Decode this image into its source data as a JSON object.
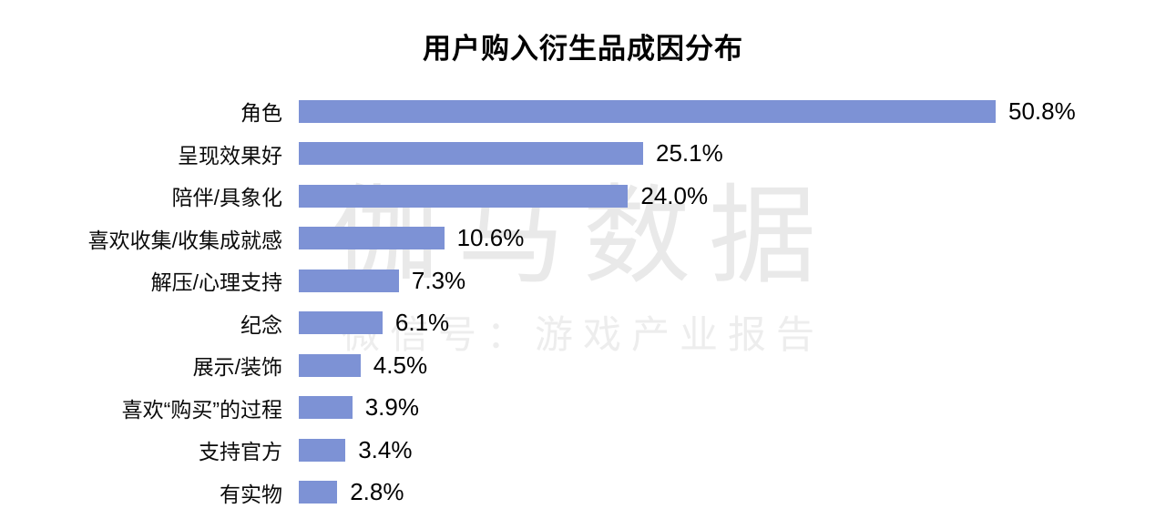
{
  "title": "用户购入衍生品成因分布",
  "watermark": {
    "main": "伽马数据",
    "sub": "微信号：游戏产业报告"
  },
  "colors": {
    "bar": "#7d92d5",
    "watermark_main": "#e9e9e9",
    "watermark_sub": "#ededed",
    "title_text": "#000000",
    "background": "#ffffff"
  },
  "chart_data": {
    "type": "bar",
    "orientation": "horizontal",
    "title": "用户购入衍生品成因分布",
    "xlabel": "",
    "ylabel": "",
    "xlim": [
      0,
      55
    ],
    "grid": false,
    "legend": false,
    "data_labels": "outside-end",
    "unit": "%",
    "categories": [
      "角色",
      "呈现效果好",
      "陪伴/具象化",
      "喜欢收集/收集成就感",
      "解压/心理支持",
      "纪念",
      "展示/装饰",
      "喜欢“购买”的过程",
      "支持官方",
      "有实物"
    ],
    "values": [
      50.8,
      25.1,
      24.0,
      10.6,
      7.3,
      6.1,
      4.5,
      3.9,
      3.4,
      2.8
    ],
    "value_labels": [
      "50.8%",
      "25.1%",
      "24.0%",
      "10.6%",
      "7.3%",
      "6.1%",
      "4.5%",
      "3.9%",
      "3.4%",
      "2.8%"
    ]
  }
}
